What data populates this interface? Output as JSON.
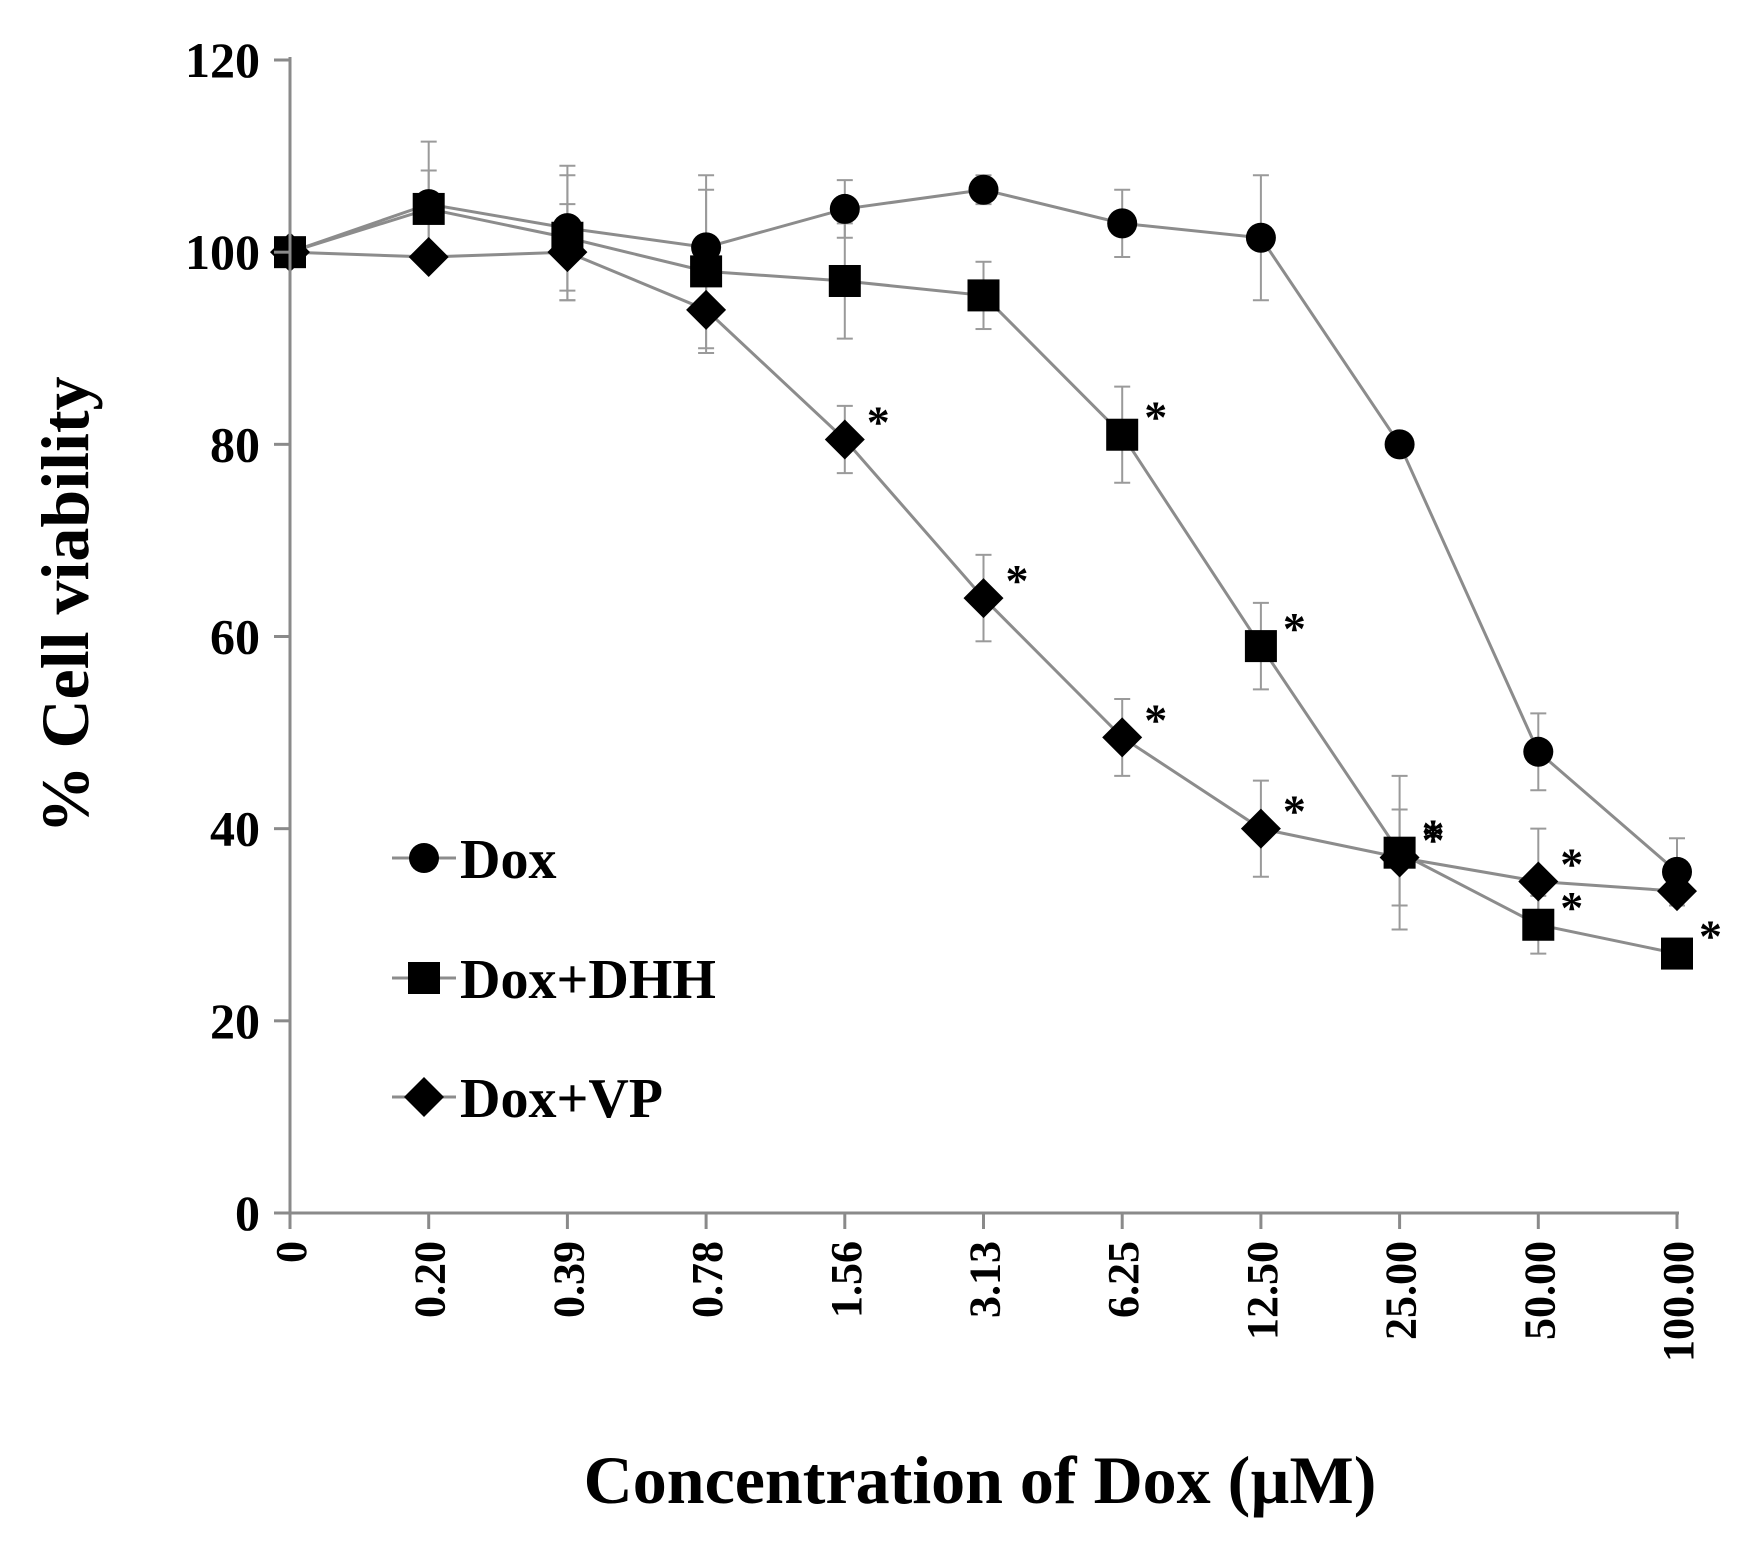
{
  "chart_data": {
    "type": "line",
    "title": "",
    "xlabel": "Concentration of Dox (µM)",
    "ylabel": "% Cell viability",
    "ylim": [
      0,
      120
    ],
    "yticks": [
      0,
      20,
      40,
      60,
      80,
      100,
      120
    ],
    "categories": [
      "0",
      "0.20",
      "0.39",
      "0.78",
      "1.56",
      "3.13",
      "6.25",
      "12.50",
      "25.00",
      "50.00",
      "100.00"
    ],
    "grid": false,
    "legend_position": "bottom-left",
    "significance_symbol": "*",
    "series": [
      {
        "name": "Dox",
        "marker": "circle",
        "values": [
          100,
          105,
          102.5,
          100.5,
          104.5,
          106.5,
          103,
          101.5,
          80,
          48,
          35.5
        ],
        "errors": [
          0,
          6.5,
          6.5,
          7.5,
          3,
          1.5,
          3.5,
          6.5,
          0,
          4,
          3.5
        ],
        "significant": [
          false,
          false,
          false,
          false,
          false,
          false,
          false,
          false,
          false,
          false,
          false
        ]
      },
      {
        "name": "Dox+DHH",
        "marker": "square",
        "values": [
          100,
          104.5,
          101.5,
          98,
          97,
          95.5,
          81,
          59,
          37.5,
          30,
          27
        ],
        "errors": [
          0,
          4,
          6.5,
          8.5,
          6,
          3.5,
          5,
          4.5,
          8,
          3,
          0.5
        ],
        "significant": [
          false,
          false,
          false,
          false,
          false,
          false,
          true,
          true,
          true,
          true,
          true
        ]
      },
      {
        "name": "Dox+VP",
        "marker": "diamond",
        "values": [
          100,
          99.5,
          100,
          94,
          80.5,
          64,
          49.5,
          40,
          37,
          34.5,
          33.5
        ],
        "errors": [
          0,
          0,
          5,
          4,
          3.5,
          4.5,
          4,
          5,
          5,
          5.5,
          0
        ],
        "significant": [
          false,
          false,
          false,
          false,
          true,
          true,
          true,
          true,
          true,
          true,
          false
        ]
      }
    ]
  }
}
